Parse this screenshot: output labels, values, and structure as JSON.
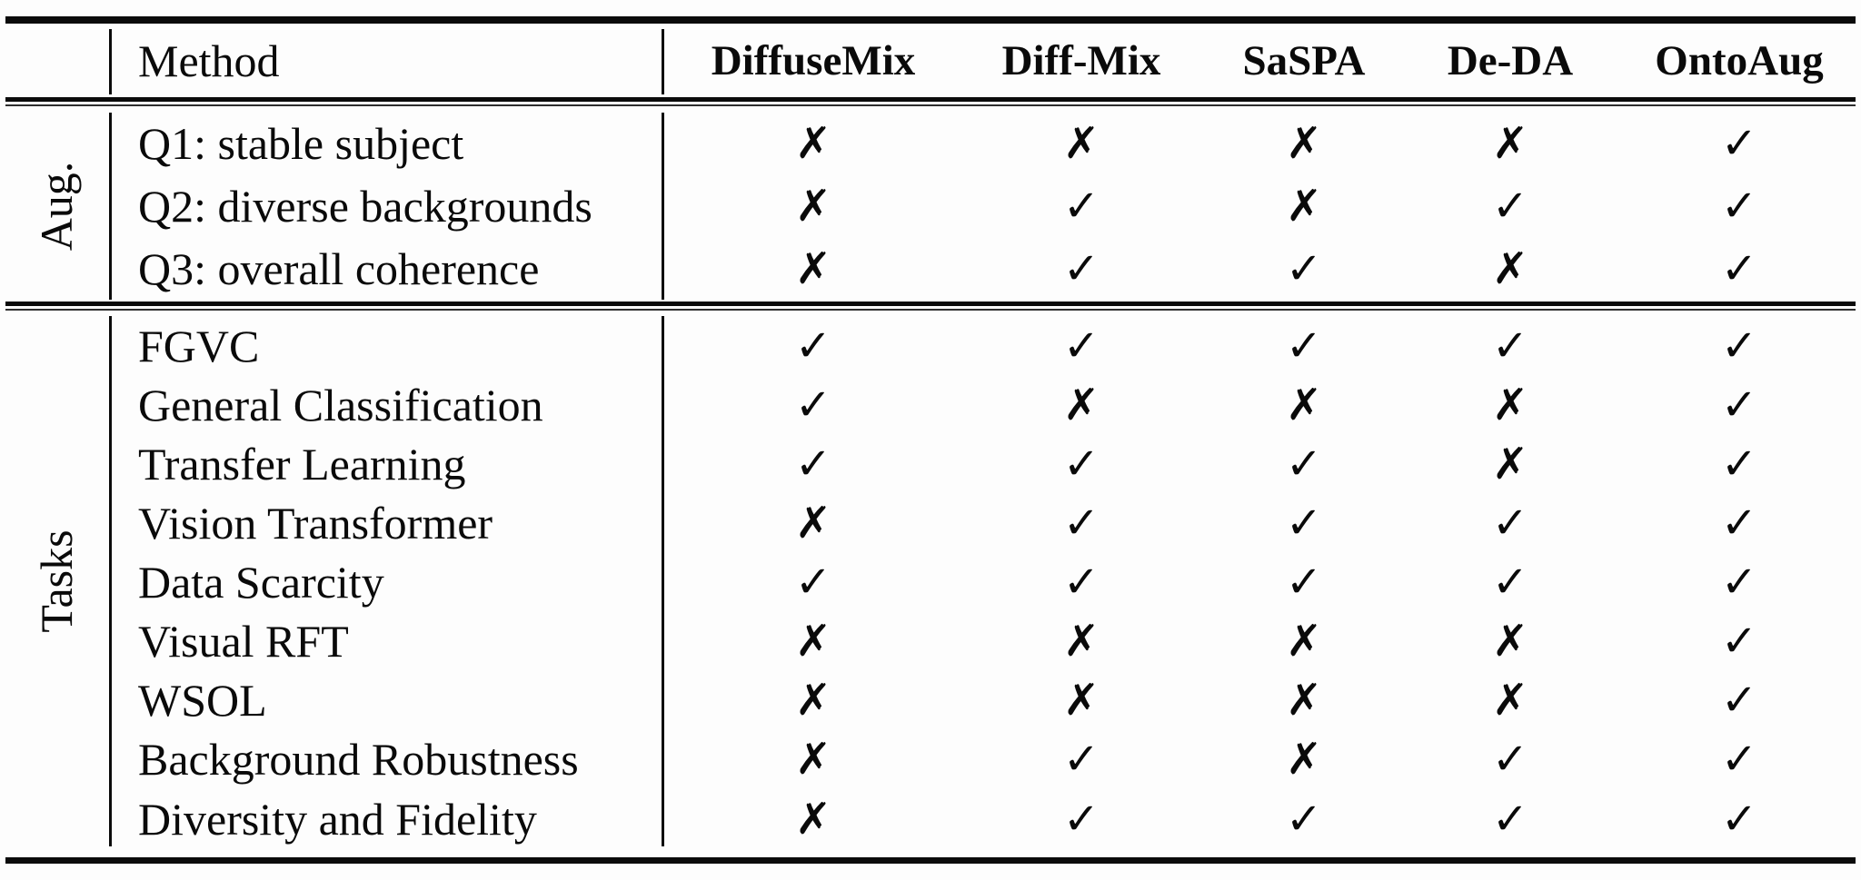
{
  "table": {
    "corner_header": "Method",
    "method_columns": [
      "DiffuseMix",
      "Diff-Mix",
      "SaSPA",
      "De-DA",
      "OntoAug"
    ],
    "mark_glyphs": {
      "check": "✓",
      "cross": "✗"
    },
    "sections": [
      {
        "label": "Aug.",
        "rows": [
          {
            "label": "Q1: stable subject",
            "marks": [
              "✗",
              "✗",
              "✗",
              "✗",
              "✓"
            ]
          },
          {
            "label": "Q2: diverse backgrounds",
            "marks": [
              "✗",
              "✓",
              "✗",
              "✓",
              "✓"
            ]
          },
          {
            "label": "Q3: overall coherence",
            "marks": [
              "✗",
              "✓",
              "✓",
              "✗",
              "✓"
            ]
          }
        ]
      },
      {
        "label": "Tasks",
        "rows": [
          {
            "label": "FGVC",
            "marks": [
              "✓",
              "✓",
              "✓",
              "✓",
              "✓"
            ]
          },
          {
            "label": "General Classification",
            "marks": [
              "✓",
              "✗",
              "✗",
              "✗",
              "✓"
            ]
          },
          {
            "label": "Transfer Learning",
            "marks": [
              "✓",
              "✓",
              "✓",
              "✗",
              "✓"
            ]
          },
          {
            "label": "Vision Transformer",
            "marks": [
              "✗",
              "✓",
              "✓",
              "✓",
              "✓"
            ]
          },
          {
            "label": "Data Scarcity",
            "marks": [
              "✓",
              "✓",
              "✓",
              "✓",
              "✓"
            ]
          },
          {
            "label": "Visual RFT",
            "marks": [
              "✗",
              "✗",
              "✗",
              "✗",
              "✓"
            ]
          },
          {
            "label": "WSOL",
            "marks": [
              "✗",
              "✗",
              "✗",
              "✗",
              "✓"
            ]
          },
          {
            "label": "Background Robustness",
            "marks": [
              "✗",
              "✓",
              "✗",
              "✓",
              "✓"
            ]
          },
          {
            "label": "Diversity and Fidelity",
            "marks": [
              "✗",
              "✓",
              "✓",
              "✓",
              "✓"
            ]
          }
        ]
      }
    ]
  }
}
